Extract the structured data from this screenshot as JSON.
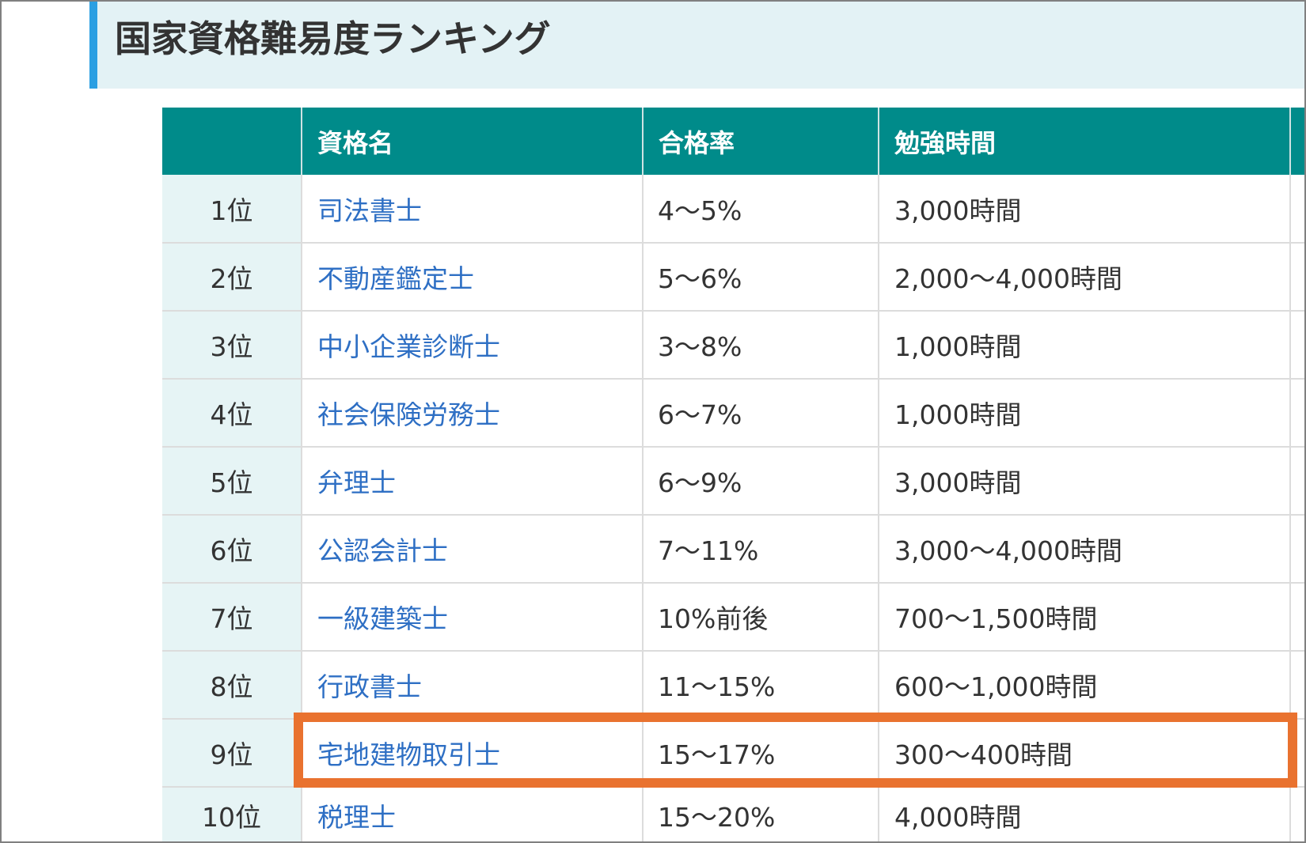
{
  "page": {
    "title": "国家資格難易度ランキング"
  },
  "table": {
    "headers": {
      "name": "資格名",
      "pass_rate": "合格率",
      "study_time": "勉強時間"
    },
    "rows": [
      {
        "rank": "1位",
        "name": "司法書士",
        "pass_rate": "4～5%",
        "study_time": "3,000時間",
        "highlighted": false
      },
      {
        "rank": "2位",
        "name": "不動産鑑定士",
        "pass_rate": "5～6%",
        "study_time": "2,000～4,000時間",
        "highlighted": false
      },
      {
        "rank": "3位",
        "name": "中小企業診断士",
        "pass_rate": "3～8%",
        "study_time": "1,000時間",
        "highlighted": false
      },
      {
        "rank": "4位",
        "name": "社会保険労務士",
        "pass_rate": "6～7%",
        "study_time": "1,000時間",
        "highlighted": false
      },
      {
        "rank": "5位",
        "name": "弁理士",
        "pass_rate": "6～9%",
        "study_time": "3,000時間",
        "highlighted": false
      },
      {
        "rank": "6位",
        "name": "公認会計士",
        "pass_rate": "7～11%",
        "study_time": "3,000～4,000時間",
        "highlighted": false
      },
      {
        "rank": "7位",
        "name": "一級建築士",
        "pass_rate": "10%前後",
        "study_time": "700～1,500時間",
        "highlighted": false
      },
      {
        "rank": "8位",
        "name": "行政書士",
        "pass_rate": "11～15%",
        "study_time": "600～1,000時間",
        "highlighted": false
      },
      {
        "rank": "9位",
        "name": "宅地建物取引士",
        "pass_rate": "15～17%",
        "study_time": "300～400時間",
        "highlighted": true
      },
      {
        "rank": "10位",
        "name": "税理士",
        "pass_rate": "15～20%",
        "study_time": "4,000時間",
        "highlighted": false
      }
    ]
  },
  "colors": {
    "header_bg": "#008b8a",
    "accent_bar": "#2b9fe2",
    "heading_bg": "#e3f2f5",
    "rank_bg": "#e6f4f5",
    "link": "#2e6fc4",
    "highlight": "#e9722f"
  }
}
